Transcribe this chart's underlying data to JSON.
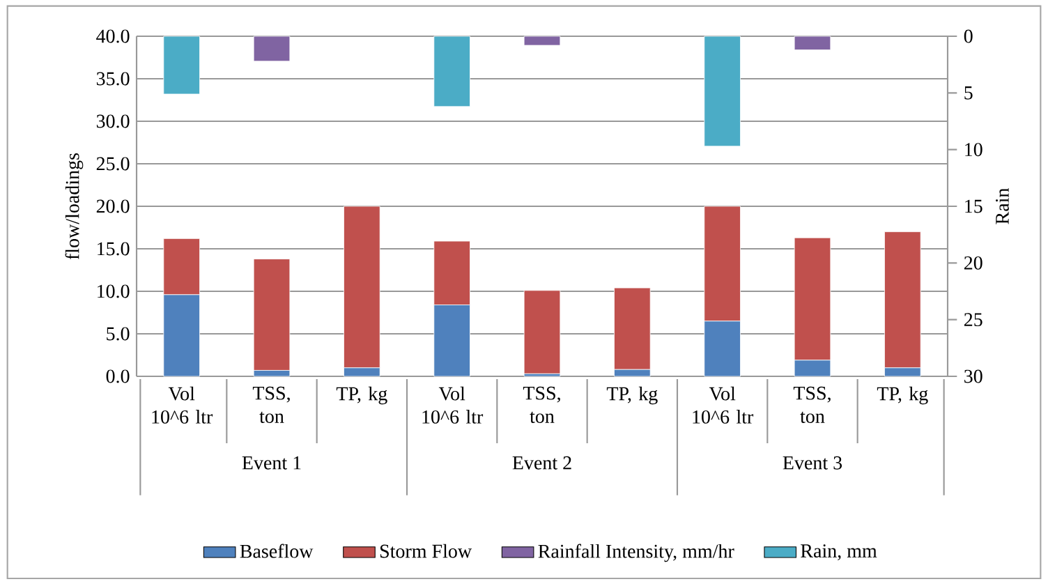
{
  "chart_data": {
    "type": "bar",
    "stacked": true,
    "categories": [
      "Vol 10^6 ltr",
      "TSS, ton",
      "TP, kg",
      "Vol 10^6 ltr",
      "TSS, ton",
      "TP, kg",
      "Vol 10^6 ltr",
      "TSS, ton",
      "TP, kg"
    ],
    "series": [
      {
        "name": "Baseflow",
        "color": "#4f81bd",
        "values": [
          9.6,
          0.7,
          1.0,
          8.4,
          0.3,
          0.8,
          6.5,
          1.9,
          1.0
        ]
      },
      {
        "name": "Storm Flow",
        "color": "#c0504d",
        "values": [
          6.6,
          13.1,
          19.0,
          7.5,
          9.8,
          9.6,
          13.5,
          14.4,
          16.0
        ]
      },
      {
        "name": "Rainfall Intensity, mm/hr",
        "color": "#8064a2",
        "axis": "y2",
        "values": [
          null,
          2.2,
          null,
          null,
          0.8,
          null,
          null,
          1.2,
          null
        ]
      },
      {
        "name": "Rain, mm",
        "color": "#4bacc6",
        "axis": "y2",
        "values": [
          5.1,
          null,
          null,
          6.2,
          null,
          null,
          9.7,
          null,
          null
        ]
      }
    ],
    "ylabel": "flow/loadings",
    "y2label": "Rain",
    "ylim": [
      0,
      40
    ],
    "yticks": [
      {
        "value": 0,
        "label": "0.0"
      },
      {
        "value": 5,
        "label": "5.0"
      },
      {
        "value": 10,
        "label": "10.0"
      },
      {
        "value": 15,
        "label": "15.0"
      },
      {
        "value": 20,
        "label": "20.0"
      },
      {
        "value": 25,
        "label": "25.0"
      },
      {
        "value": 30,
        "label": "30.0"
      },
      {
        "value": 35,
        "label": "35.0"
      },
      {
        "value": 40,
        "label": "40.0"
      }
    ],
    "y2lim": [
      30,
      0
    ],
    "y2ticks": [
      0,
      5,
      10,
      15,
      20,
      25,
      30
    ],
    "grid": "y",
    "legend": "bottom",
    "annotations": [
      "Event 1",
      "Event 2",
      "Event 3"
    ]
  }
}
